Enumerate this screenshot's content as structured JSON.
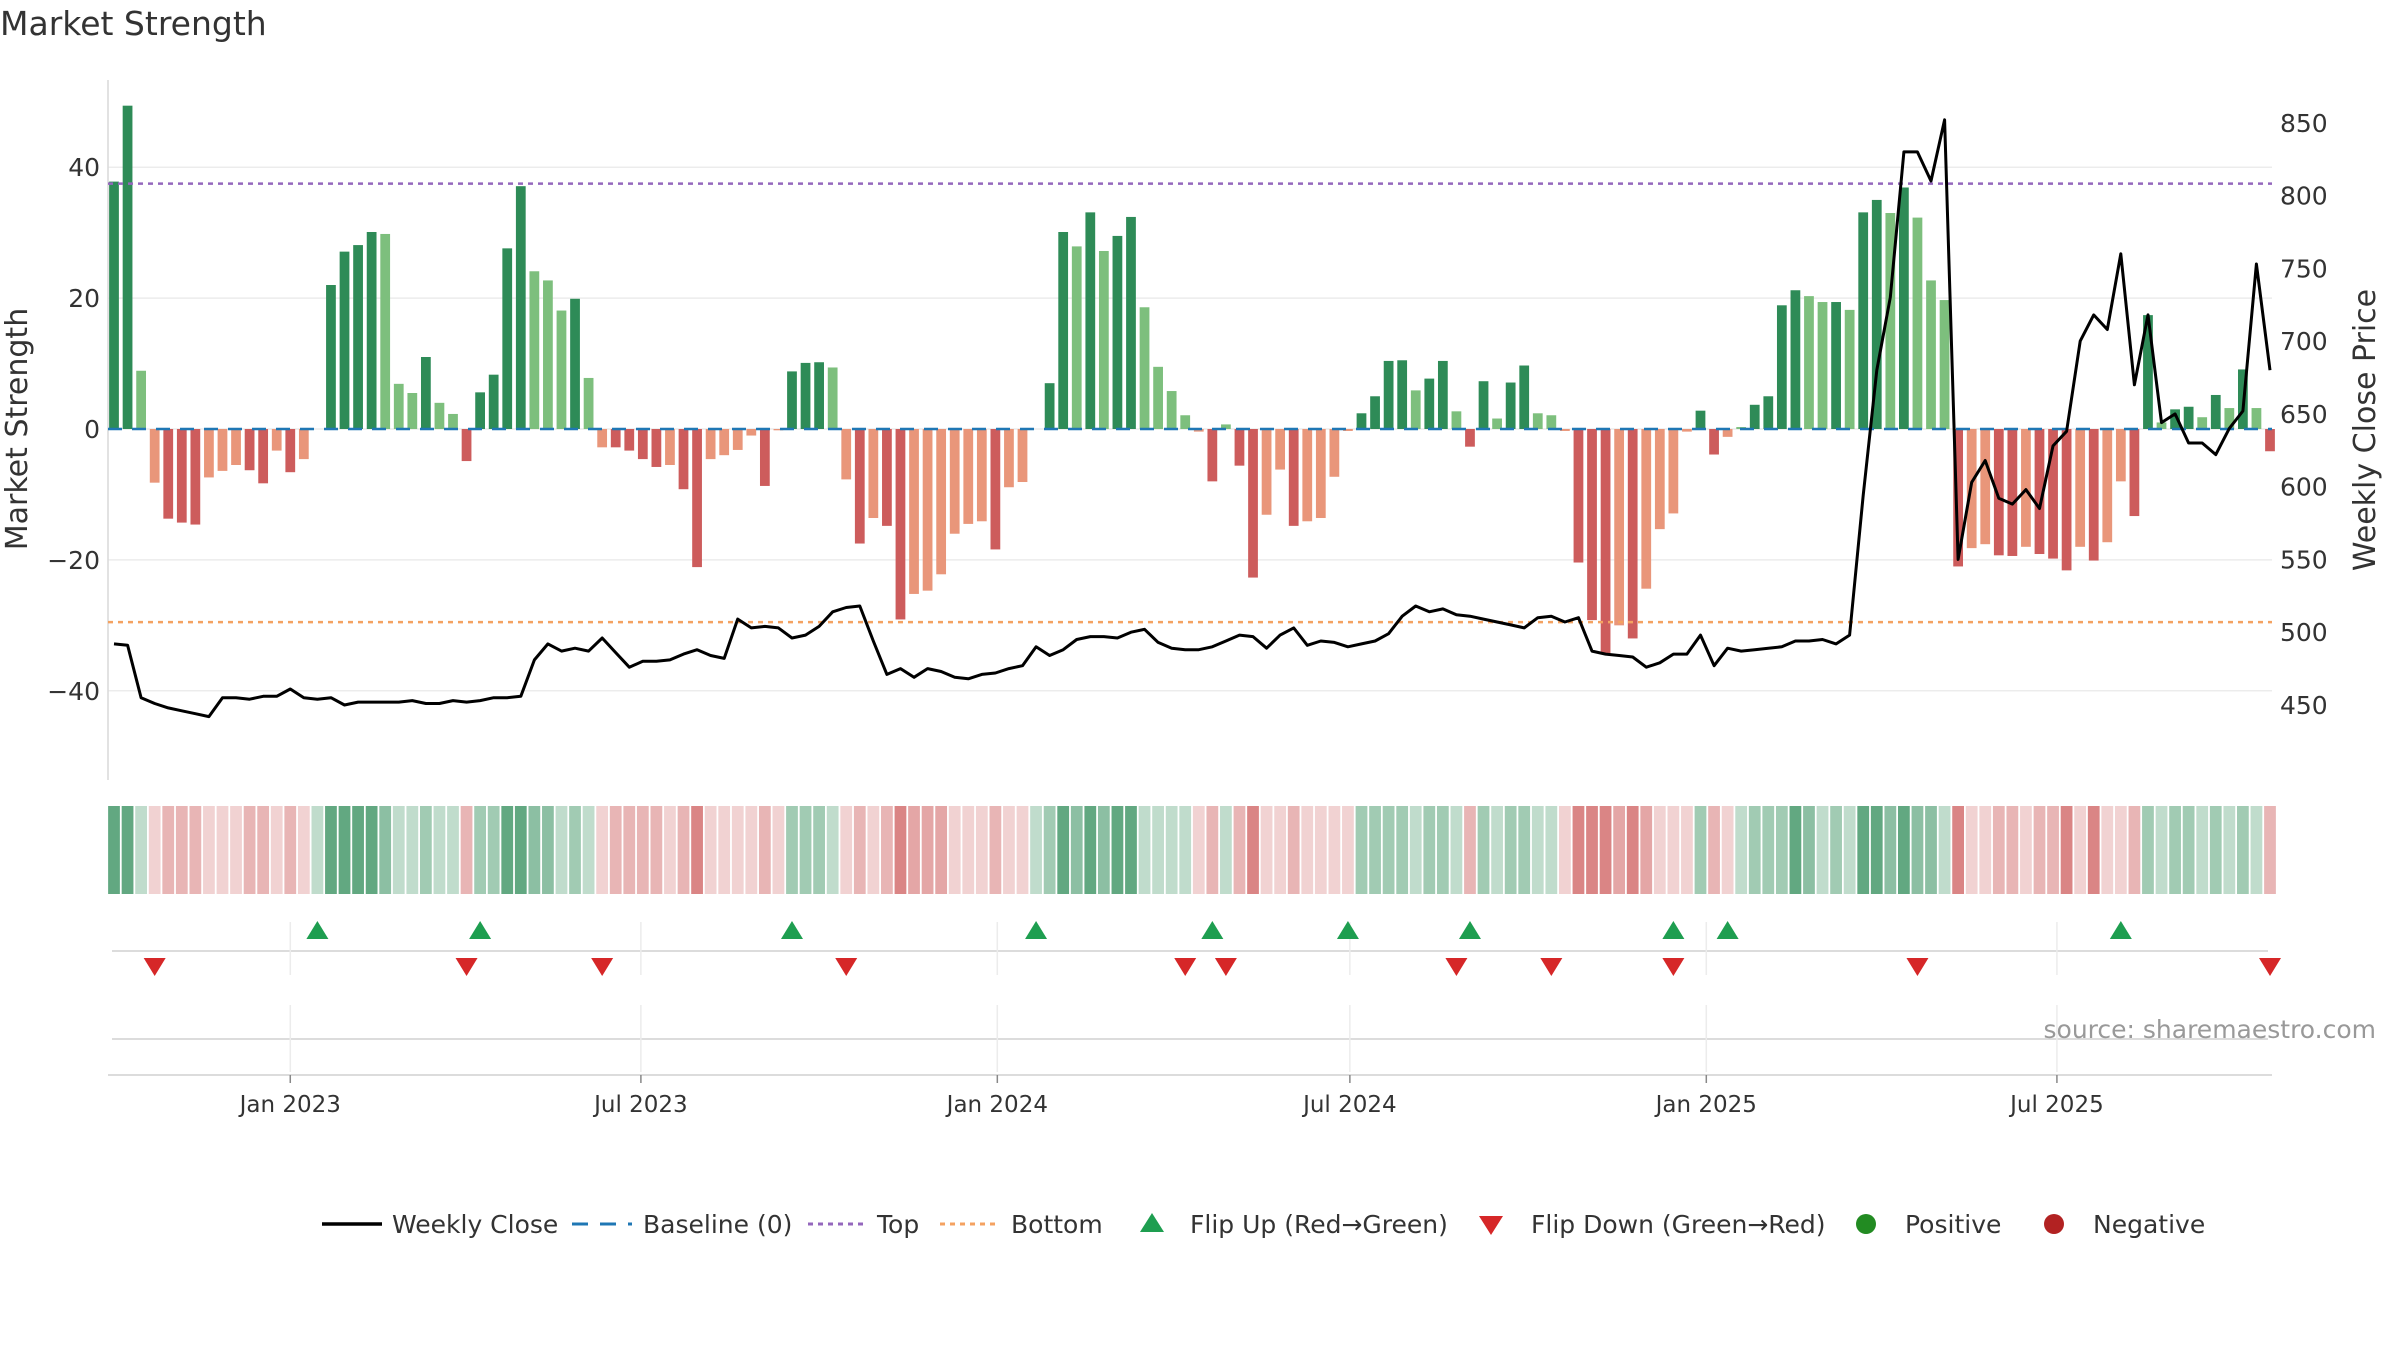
{
  "chart_title": "Market Strength",
  "source_text": "source: sharemaestro.com",
  "colors": {
    "strong_green": "#2e8b57",
    "light_green": "#7dbf7d",
    "strong_red": "#cd5c5c",
    "light_red": "#e9967a",
    "weekly_close": "#000000",
    "baseline": "#1f77b4",
    "top": "#9467bd",
    "bottom": "#f4a261",
    "flip_up": "#1e9e50",
    "flip_down": "#d62728",
    "positive": "#228b22",
    "negative": "#b22222"
  },
  "chart_data": {
    "type": "bar",
    "title": "Market Strength",
    "ylabel": "Market Strength",
    "y2label": "Weekly Close Price",
    "ylim": [
      -54,
      54
    ],
    "y2lim": [
      405,
      872
    ],
    "yticks": [
      -40,
      -20,
      0,
      20,
      40
    ],
    "yticklabels": [
      "−40",
      "−20",
      "0",
      "20",
      "40"
    ],
    "y2ticks": [
      450,
      500,
      550,
      600,
      650,
      700,
      750,
      800,
      850
    ],
    "xticks": [
      "2023-01-01",
      "2023-07-01",
      "2024-01-01",
      "2024-07-01",
      "2025-01-01",
      "2025-07-01"
    ],
    "xticklabels": [
      "Jan 2023",
      "Jul 2023",
      "Jan 2024",
      "Jul 2024",
      "Jan 2025",
      "Jul 2025"
    ],
    "top_line": 37.5,
    "bottom_line": -29.5,
    "baseline": 0,
    "grid": true,
    "legend_position": "bottom",
    "legend": [
      "Weekly Close",
      "Baseline (0)",
      "Top",
      "Bottom",
      "Flip Up (Red→Green)",
      "Flip Down (Green→Red)",
      "Positive",
      "Negative"
    ],
    "first_week": "2022-10-02",
    "weeks": 160,
    "strength": [
      37.8,
      49.4,
      8.9,
      -8.2,
      -13.7,
      -14.3,
      -14.6,
      -7.4,
      -6.4,
      -5.5,
      -6.3,
      -8.3,
      -3.3,
      -6.6,
      -4.6,
      0.0,
      22.0,
      27.1,
      28.1,
      30.1,
      29.8,
      6.9,
      5.5,
      11.0,
      4.0,
      2.3,
      -4.9,
      5.6,
      8.3,
      27.6,
      37.1,
      24.1,
      22.7,
      18.1,
      19.9,
      7.8,
      -2.8,
      -2.8,
      -3.3,
      -4.6,
      -5.8,
      -5.5,
      -9.2,
      -21.1,
      -4.6,
      -4.0,
      -3.2,
      -1.0,
      -8.7,
      -0.2,
      8.8,
      10.1,
      10.2,
      9.4,
      -7.7,
      -17.5,
      -13.6,
      -14.8,
      -29.1,
      -25.2,
      -24.7,
      -22.2,
      -16.0,
      -14.5,
      -14.1,
      -18.4,
      -8.9,
      -8.1,
      0.0,
      7.0,
      30.1,
      27.9,
      33.1,
      27.2,
      29.5,
      32.4,
      18.6,
      9.5,
      5.8,
      2.1,
      -0.4,
      -8.0,
      0.7,
      -5.6,
      -22.7,
      -13.1,
      -6.2,
      -14.8,
      -14.1,
      -13.6,
      -7.3,
      -0.3,
      2.4,
      5.0,
      10.4,
      10.5,
      5.9,
      7.7,
      10.4,
      2.7,
      -2.7,
      7.3,
      1.6,
      7.1,
      9.7,
      2.4,
      2.1,
      -0.3,
      -20.4,
      -29.2,
      -34.3,
      -30.0,
      -32.0,
      -24.4,
      -15.3,
      -12.9,
      -0.4,
      2.8,
      -3.9,
      -1.2,
      0.3,
      3.7,
      5.0,
      18.9,
      21.2,
      20.3,
      19.4,
      19.4,
      18.2,
      33.1,
      35.0,
      33.0,
      36.9,
      32.3,
      22.7,
      19.7,
      -21.0,
      -18.2,
      -17.6,
      -19.3,
      -19.4,
      -18.0,
      -19.1,
      -19.8,
      -21.6,
      -18.0,
      -20.1,
      -17.3,
      -8.0,
      -13.3,
      17.4,
      1.0,
      3.0,
      3.4,
      1.8,
      5.2,
      3.2,
      9.1,
      3.2,
      -3.4
    ],
    "close": [
      492,
      491,
      455,
      451,
      448,
      446,
      444,
      442,
      455,
      455,
      454,
      456,
      456,
      461,
      455,
      454,
      455,
      450,
      452,
      452,
      452,
      452,
      453,
      451,
      451,
      453,
      452,
      453,
      455,
      455,
      456,
      481,
      492,
      487,
      489,
      487,
      496,
      486,
      476,
      480,
      480,
      481,
      485,
      488,
      484,
      482,
      509,
      503,
      504,
      503,
      496,
      498,
      504,
      514,
      517,
      518,
      494,
      471,
      475,
      469,
      475,
      473,
      469,
      468,
      471,
      472,
      475,
      477,
      490,
      484,
      488,
      495,
      497,
      497,
      496,
      500,
      502,
      493,
      489,
      488,
      488,
      490,
      494,
      498,
      497,
      489,
      498,
      503,
      491,
      494,
      493,
      490,
      492,
      494,
      499,
      511,
      518,
      514,
      516,
      512,
      511,
      509,
      507,
      505,
      503,
      510,
      511,
      507,
      510,
      487,
      485,
      484,
      483,
      476,
      479,
      485,
      485,
      498,
      477,
      489,
      487,
      488,
      489,
      490,
      494,
      494,
      495,
      492,
      498,
      594,
      680,
      730,
      830,
      830,
      810,
      852,
      550,
      603,
      618,
      592,
      588,
      598,
      585,
      628,
      638,
      700,
      718,
      708,
      760,
      670,
      718,
      644,
      650,
      630,
      630,
      622,
      640,
      652,
      753,
      680
    ],
    "flip_up_weeks": [
      15,
      27,
      50,
      68,
      81,
      91,
      100,
      115,
      119,
      148
    ],
    "flip_down_weeks": [
      3,
      26,
      36,
      54,
      79,
      82,
      99,
      106,
      115,
      133,
      159
    ]
  }
}
